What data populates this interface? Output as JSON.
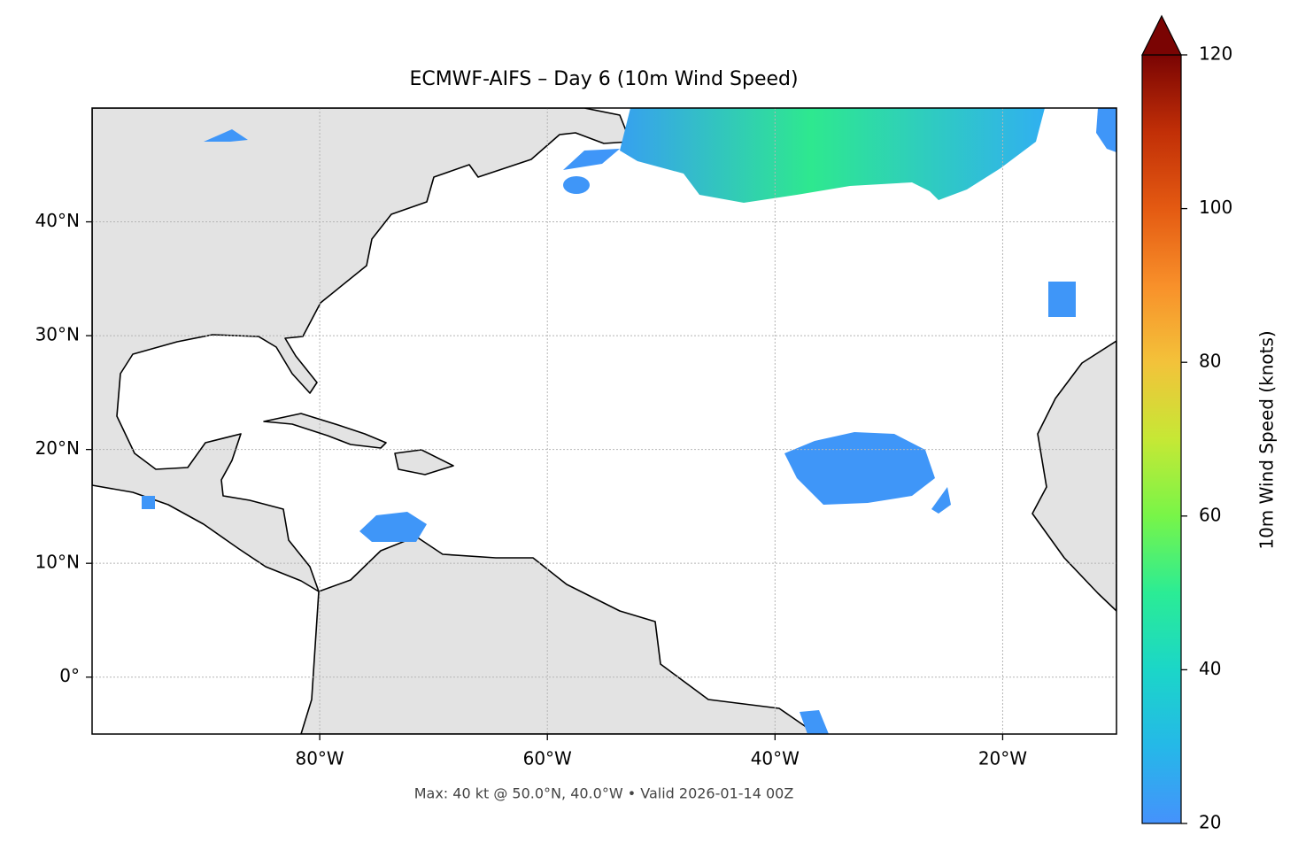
{
  "chart_data": {
    "type": "map",
    "title": "ECMWF-AIFS – Day 6 (10m Wind Speed)",
    "footer": "Max: 40 kt @ 50.0°N, 40.0°W • Valid 2026-01-14 00Z",
    "xlim": [
      -100,
      -10
    ],
    "ylim": [
      -5,
      50
    ],
    "xticks": [
      {
        "value": -80,
        "label": "80°W"
      },
      {
        "value": -60,
        "label": "60°W"
      },
      {
        "value": -40,
        "label": "40°W"
      },
      {
        "value": -20,
        "label": "20°W"
      }
    ],
    "yticks": [
      {
        "value": 0,
        "label": "0°"
      },
      {
        "value": 10,
        "label": "10°N"
      },
      {
        "value": 20,
        "label": "20°N"
      },
      {
        "value": 30,
        "label": "30°N"
      },
      {
        "value": 40,
        "label": "40°N"
      }
    ],
    "grid": true,
    "colorbar": {
      "label": "10m Wind Speed (knots)",
      "lim": [
        20,
        120
      ],
      "ticks": [
        20,
        40,
        60,
        80,
        100,
        120
      ],
      "colors": [
        "#4592fc",
        "#25b8e8",
        "#1bd6c8",
        "#2bec95",
        "#78f548",
        "#c6e835",
        "#f3c23a",
        "#f8902a",
        "#e45a12",
        "#c12f07",
        "#7a0403"
      ]
    }
  }
}
